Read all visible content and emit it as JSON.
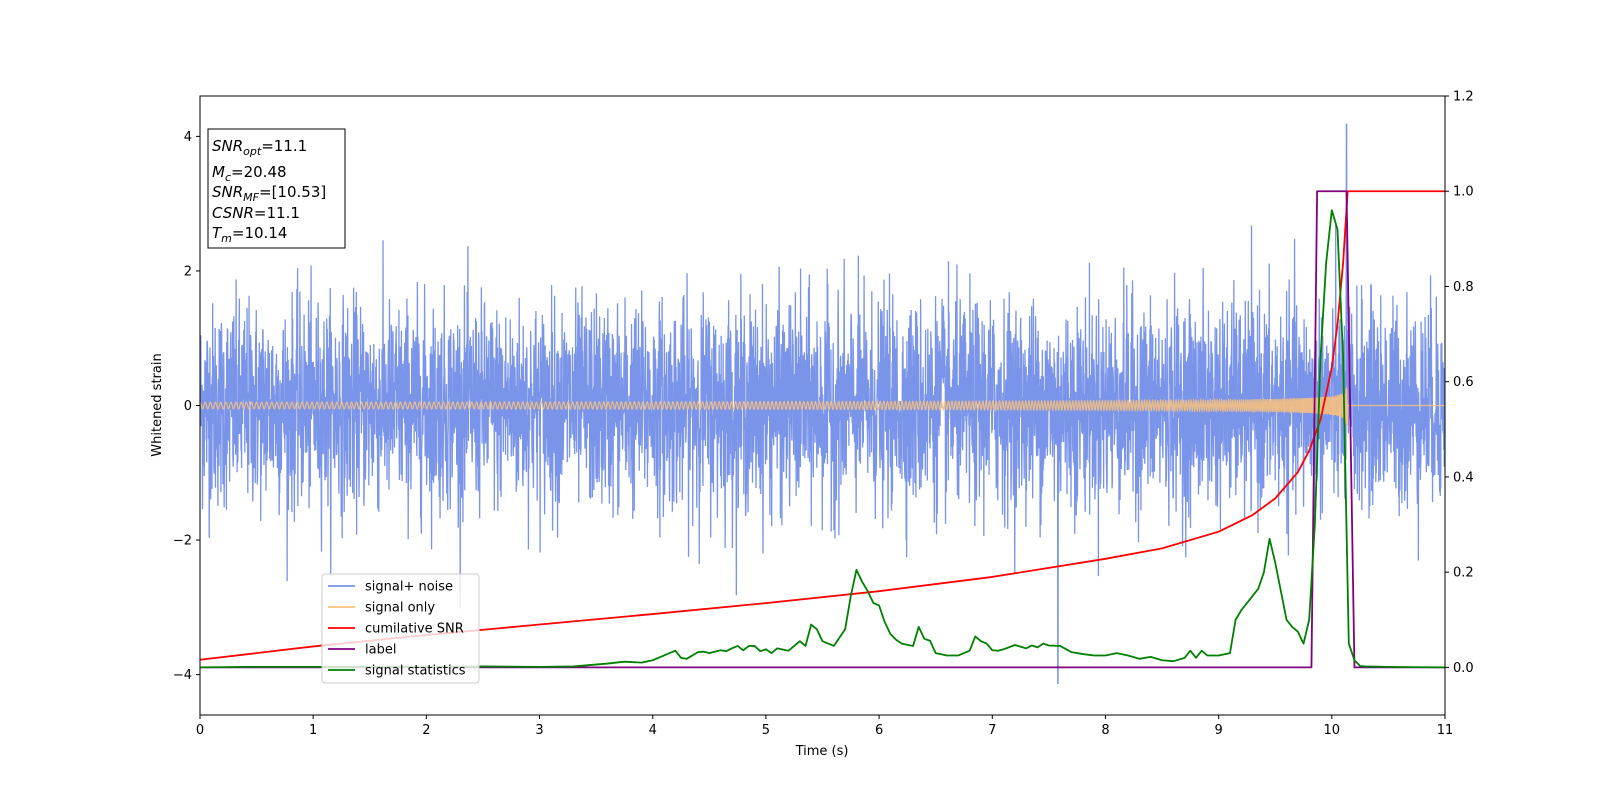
{
  "chart_data": {
    "type": "line",
    "xlabel": "Time (s)",
    "ylabel": "Whitened strain",
    "xlim": [
      0,
      11
    ],
    "ylim_left": [
      -4.6,
      4.6
    ],
    "ylim_right": [
      -0.1,
      1.2
    ],
    "x_ticks": [
      0,
      1,
      2,
      3,
      4,
      5,
      6,
      7,
      8,
      9,
      10,
      11
    ],
    "y_ticks_left": [
      -4,
      -2,
      0,
      2,
      4
    ],
    "y_ticks_right": [
      0.0,
      0.2,
      0.4,
      0.6,
      0.8,
      1.0,
      1.2
    ],
    "legend_position": "lower-left",
    "annotation": {
      "snr_opt": {
        "base": "SNR",
        "sub": "opt",
        "value": "=11.1"
      },
      "mc": {
        "base": "M",
        "sub": "c",
        "value": "=20.48"
      },
      "snr_mf": {
        "base": "SNR",
        "sub": "MF",
        "value": "=[10.53]"
      },
      "csnr": {
        "base": "CSNR",
        "value": "=11.1"
      },
      "tm": {
        "base": "T",
        "sub": "m",
        "value": "=10.14"
      }
    },
    "series": [
      {
        "name": "signal+ noise",
        "color": "#7994e8",
        "axis": "left",
        "description_values": {
          "approx_std": 0.75,
          "max_spike": 4.18,
          "min_spike": -4.13,
          "max_spike_time": 10.13,
          "min_spike_time": 7.58
        }
      },
      {
        "name": "signal only",
        "color": "#f7c07e",
        "axis": "left",
        "description_values": {
          "chirp_end_time": 10.14,
          "peak_amplitude": 0.5
        }
      },
      {
        "name": "cumilative SNR",
        "color": "#ff0000",
        "axis": "right",
        "x": [
          0,
          1,
          2,
          3,
          4,
          5,
          6,
          7,
          8,
          8.5,
          9,
          9.3,
          9.5,
          9.7,
          9.8,
          9.9,
          10.0,
          10.05,
          10.1,
          10.14,
          10.2,
          11
        ],
        "values": [
          0.016,
          0.044,
          0.068,
          0.09,
          0.112,
          0.135,
          0.16,
          0.19,
          0.228,
          0.25,
          0.285,
          0.32,
          0.355,
          0.41,
          0.455,
          0.52,
          0.63,
          0.72,
          0.85,
          1.0,
          1.0,
          1.0
        ]
      },
      {
        "name": "label",
        "color": "#800080",
        "axis": "right",
        "x": [
          0,
          9.82,
          9.87,
          10.13,
          10.2,
          11
        ],
        "values": [
          0,
          0,
          1,
          1,
          0,
          0
        ]
      },
      {
        "name": "signal statistics",
        "color": "#008000",
        "axis": "right",
        "x": [
          0,
          0.4,
          1,
          1.5,
          2,
          2.5,
          3,
          3.3,
          3.6,
          3.75,
          3.9,
          4.0,
          4.1,
          4.2,
          4.25,
          4.3,
          4.4,
          4.45,
          4.5,
          4.6,
          4.65,
          4.7,
          4.75,
          4.8,
          4.85,
          4.9,
          4.95,
          5.0,
          5.05,
          5.1,
          5.2,
          5.3,
          5.35,
          5.4,
          5.45,
          5.5,
          5.55,
          5.6,
          5.7,
          5.75,
          5.8,
          5.85,
          5.9,
          5.95,
          6.0,
          6.05,
          6.1,
          6.15,
          6.2,
          6.3,
          6.35,
          6.4,
          6.45,
          6.5,
          6.6,
          6.7,
          6.8,
          6.85,
          6.9,
          6.95,
          7.0,
          7.05,
          7.1,
          7.2,
          7.3,
          7.35,
          7.4,
          7.45,
          7.5,
          7.6,
          7.7,
          7.8,
          7.9,
          8.0,
          8.1,
          8.2,
          8.3,
          8.4,
          8.5,
          8.6,
          8.7,
          8.75,
          8.8,
          8.85,
          8.9,
          9.0,
          9.1,
          9.15,
          9.2,
          9.3,
          9.35,
          9.4,
          9.45,
          9.5,
          9.55,
          9.6,
          9.65,
          9.7,
          9.75,
          9.8,
          9.85,
          9.9,
          9.95,
          10.0,
          10.05,
          10.1,
          10.15,
          10.2,
          10.25,
          10.3,
          10.5,
          11
        ],
        "values": [
          0.0,
          0.001,
          0.001,
          0.001,
          0.001,
          0.002,
          0.001,
          0.002,
          0.008,
          0.012,
          0.01,
          0.015,
          0.025,
          0.035,
          0.02,
          0.018,
          0.032,
          0.033,
          0.03,
          0.036,
          0.034,
          0.04,
          0.045,
          0.036,
          0.045,
          0.045,
          0.034,
          0.038,
          0.03,
          0.04,
          0.035,
          0.055,
          0.045,
          0.09,
          0.08,
          0.055,
          0.05,
          0.045,
          0.08,
          0.15,
          0.205,
          0.18,
          0.16,
          0.135,
          0.13,
          0.095,
          0.07,
          0.058,
          0.05,
          0.045,
          0.085,
          0.06,
          0.056,
          0.03,
          0.025,
          0.025,
          0.035,
          0.065,
          0.055,
          0.05,
          0.036,
          0.035,
          0.038,
          0.047,
          0.04,
          0.046,
          0.042,
          0.05,
          0.046,
          0.045,
          0.032,
          0.028,
          0.025,
          0.025,
          0.03,
          0.025,
          0.018,
          0.022,
          0.015,
          0.013,
          0.02,
          0.035,
          0.02,
          0.035,
          0.025,
          0.025,
          0.03,
          0.1,
          0.12,
          0.15,
          0.165,
          0.2,
          0.27,
          0.22,
          0.16,
          0.1,
          0.085,
          0.075,
          0.05,
          0.1,
          0.3,
          0.65,
          0.85,
          0.96,
          0.92,
          0.65,
          0.05,
          0.015,
          0.003,
          0.002,
          0.001,
          0.0
        ]
      }
    ]
  }
}
